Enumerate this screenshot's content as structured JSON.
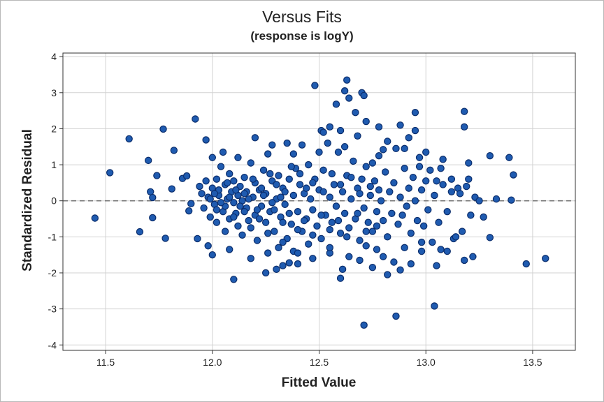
{
  "chart_data": {
    "type": "scatter",
    "title": "Versus Fits",
    "subtitle": "(response is logY)",
    "xlabel": "Fitted Value",
    "ylabel": "Standardized Residual",
    "xlim": [
      11.3,
      13.7
    ],
    "ylim": [
      -4.15,
      4.1
    ],
    "xticks": [
      11.5,
      12.0,
      12.5,
      13.0,
      13.5
    ],
    "xtick_labels": [
      "11.5",
      "12.0",
      "12.5",
      "13.0",
      "13.5"
    ],
    "yticks": [
      -4,
      -3,
      -2,
      -1,
      0,
      1,
      2,
      3,
      4
    ],
    "ytick_labels": [
      "-4",
      "-3",
      "-2",
      "-1",
      "0",
      "1",
      "2",
      "3",
      "4"
    ],
    "grid": true,
    "reference_line": {
      "y": 0,
      "style": "dashed"
    },
    "marker_color": "#1f5bb0",
    "marker_edge_color": "#0b2d6b",
    "points": [
      [
        11.45,
        -0.48
      ],
      [
        11.52,
        0.78
      ],
      [
        11.61,
        1.72
      ],
      [
        11.66,
        -0.86
      ],
      [
        11.7,
        1.12
      ],
      [
        11.71,
        0.25
      ],
      [
        11.72,
        0.09
      ],
      [
        11.72,
        -0.47
      ],
      [
        11.74,
        0.7
      ],
      [
        11.77,
        1.99
      ],
      [
        11.78,
        -1.04
      ],
      [
        11.81,
        0.33
      ],
      [
        11.82,
        1.4
      ],
      [
        11.86,
        0.62
      ],
      [
        11.88,
        0.69
      ],
      [
        11.89,
        -0.28
      ],
      [
        11.9,
        -0.08
      ],
      [
        11.92,
        2.27
      ],
      [
        11.93,
        -1.05
      ],
      [
        11.97,
        1.69
      ],
      [
        11.98,
        -1.25
      ],
      [
        12.1,
        -2.18
      ],
      [
        12.25,
        -2.0
      ],
      [
        12.3,
        -1.9
      ],
      [
        12.33,
        -1.8
      ],
      [
        12.36,
        -1.72
      ],
      [
        12.4,
        -1.75
      ],
      [
        12.48,
        3.2
      ],
      [
        12.51,
        1.95
      ],
      [
        12.55,
        -1.45
      ],
      [
        12.58,
        2.68
      ],
      [
        12.6,
        -2.15
      ],
      [
        12.61,
        -1.9
      ],
      [
        12.63,
        3.35
      ],
      [
        12.62,
        3.05
      ],
      [
        12.64,
        2.85
      ],
      [
        12.67,
        2.45
      ],
      [
        12.69,
        -1.65
      ],
      [
        12.7,
        3.0
      ],
      [
        12.71,
        2.92
      ],
      [
        12.71,
        -3.45
      ],
      [
        12.72,
        2.2
      ],
      [
        12.75,
        -1.85
      ],
      [
        12.77,
        -1.35
      ],
      [
        12.78,
        2.05
      ],
      [
        12.8,
        1.42
      ],
      [
        12.82,
        -2.05
      ],
      [
        12.86,
        -3.2
      ],
      [
        12.88,
        2.1
      ],
      [
        12.88,
        -1.92
      ],
      [
        12.95,
        2.45
      ],
      [
        12.95,
        1.95
      ],
      [
        12.98,
        -1.4
      ],
      [
        13.04,
        -2.92
      ],
      [
        13.08,
        1.15
      ],
      [
        13.15,
        0.35
      ],
      [
        13.18,
        2.48
      ],
      [
        13.18,
        2.05
      ],
      [
        13.2,
        1.05
      ],
      [
        13.22,
        -1.55
      ],
      [
        13.3,
        1.25
      ],
      [
        13.3,
        -1.02
      ],
      [
        13.39,
        1.2
      ],
      [
        13.4,
        0.02
      ],
      [
        13.41,
        0.72
      ],
      [
        13.47,
        -1.75
      ],
      [
        13.56,
        -1.6
      ],
      [
        11.94,
        0.4
      ],
      [
        11.95,
        0.2
      ],
      [
        11.96,
        -0.2
      ],
      [
        11.97,
        0.55
      ],
      [
        11.98,
        0.1
      ],
      [
        11.99,
        -0.45
      ],
      [
        12.0,
        0.35
      ],
      [
        12.01,
        -0.1
      ],
      [
        12.02,
        0.6
      ],
      [
        12.02,
        -0.6
      ],
      [
        12.03,
        0.15
      ],
      [
        12.04,
        0.95
      ],
      [
        12.05,
        -0.3
      ],
      [
        12.06,
        0.45
      ],
      [
        12.06,
        -0.85
      ],
      [
        12.07,
        0.05
      ],
      [
        12.08,
        0.75
      ],
      [
        12.08,
        -0.5
      ],
      [
        12.09,
        0.25
      ],
      [
        12.1,
        -0.05
      ],
      [
        12.1,
        0.55
      ],
      [
        12.11,
        -0.35
      ],
      [
        12.12,
        0.15
      ],
      [
        12.12,
        -0.7
      ],
      [
        12.13,
        0.4
      ],
      [
        12.14,
        0.0
      ],
      [
        12.14,
        -0.95
      ],
      [
        12.15,
        0.65
      ],
      [
        12.16,
        -0.2
      ],
      [
        12.16,
        0.25
      ],
      [
        12.17,
        -0.55
      ],
      [
        12.18,
        1.05
      ],
      [
        12.19,
        0.1
      ],
      [
        12.2,
        -0.4
      ],
      [
        12.2,
        0.5
      ],
      [
        12.21,
        -1.1
      ],
      [
        12.22,
        0.3
      ],
      [
        12.23,
        -0.15
      ],
      [
        12.24,
        0.85
      ],
      [
        12.25,
        -0.6
      ],
      [
        12.25,
        0.2
      ],
      [
        12.26,
        1.3
      ],
      [
        12.27,
        -0.3
      ],
      [
        12.28,
        0.55
      ],
      [
        12.29,
        -0.85
      ],
      [
        12.3,
        0.05
      ],
      [
        12.31,
        -1.3
      ],
      [
        12.31,
        0.7
      ],
      [
        12.32,
        -0.45
      ],
      [
        12.33,
        0.35
      ],
      [
        12.34,
        -0.1
      ],
      [
        12.35,
        -1.05
      ],
      [
        12.36,
        0.6
      ],
      [
        12.37,
        -0.65
      ],
      [
        12.38,
        0.15
      ],
      [
        12.38,
        -1.4
      ],
      [
        12.39,
        0.9
      ],
      [
        12.4,
        -0.3
      ],
      [
        12.41,
        0.45
      ],
      [
        12.42,
        -0.85
      ],
      [
        12.43,
        0.2
      ],
      [
        12.44,
        -0.5
      ],
      [
        12.45,
        1.0
      ],
      [
        12.45,
        -1.2
      ],
      [
        12.46,
        0.05
      ],
      [
        12.47,
        -0.25
      ],
      [
        12.48,
        0.6
      ],
      [
        12.49,
        -0.7
      ],
      [
        12.5,
        0.3
      ],
      [
        12.51,
        -1.05
      ],
      [
        12.52,
        0.85
      ],
      [
        12.53,
        -0.4
      ],
      [
        12.54,
        1.6
      ],
      [
        12.55,
        0.1
      ],
      [
        12.56,
        -0.6
      ],
      [
        12.57,
        0.45
      ],
      [
        12.58,
        -0.15
      ],
      [
        12.59,
        1.35
      ],
      [
        12.6,
        -0.9
      ],
      [
        12.61,
        0.25
      ],
      [
        12.62,
        -0.35
      ],
      [
        12.63,
        0.7
      ],
      [
        12.64,
        -0.75
      ],
      [
        12.65,
        0.05
      ],
      [
        12.66,
        1.1
      ],
      [
        12.67,
        -0.5
      ],
      [
        12.68,
        0.35
      ],
      [
        12.69,
        -1.1
      ],
      [
        12.7,
        0.6
      ],
      [
        12.71,
        -0.2
      ],
      [
        12.72,
        0.95
      ],
      [
        12.73,
        -0.6
      ],
      [
        12.74,
        0.15
      ],
      [
        12.75,
        -0.85
      ],
      [
        12.76,
        0.55
      ],
      [
        12.77,
        -0.3
      ],
      [
        12.78,
        1.25
      ],
      [
        12.79,
        0.0
      ],
      [
        12.8,
        -0.55
      ],
      [
        12.81,
        0.8
      ],
      [
        12.82,
        -1.0
      ],
      [
        12.83,
        0.25
      ],
      [
        12.84,
        -0.35
      ],
      [
        12.85,
        0.5
      ],
      [
        12.86,
        1.45
      ],
      [
        12.87,
        -0.65
      ],
      [
        12.88,
        0.1
      ],
      [
        12.89,
        -0.4
      ],
      [
        12.9,
        0.9
      ],
      [
        12.91,
        -0.15
      ],
      [
        12.92,
        0.35
      ],
      [
        12.93,
        -0.9
      ],
      [
        12.94,
        0.65
      ],
      [
        12.95,
        0.0
      ],
      [
        12.96,
        -0.55
      ],
      [
        12.97,
        1.2
      ],
      [
        12.98,
        0.3
      ],
      [
        12.99,
        -0.7
      ],
      [
        13.0,
        0.55
      ],
      [
        13.01,
        -0.25
      ],
      [
        13.02,
        0.85
      ],
      [
        13.03,
        -1.15
      ],
      [
        13.04,
        0.15
      ],
      [
        13.05,
        0.55
      ],
      [
        13.06,
        -0.6
      ],
      [
        13.08,
        0.45
      ],
      [
        13.1,
        -0.3
      ],
      [
        13.12,
        0.6
      ],
      [
        13.13,
        -1.05
      ],
      [
        13.16,
        0.2
      ],
      [
        13.17,
        -0.85
      ],
      [
        13.19,
        0.4
      ],
      [
        13.21,
        -0.4
      ],
      [
        13.23,
        0.1
      ],
      [
        13.25,
        0.0
      ],
      [
        12.0,
        1.2
      ],
      [
        12.05,
        1.35
      ],
      [
        12.12,
        1.2
      ],
      [
        12.2,
        1.75
      ],
      [
        12.28,
        1.55
      ],
      [
        12.35,
        1.6
      ],
      [
        12.42,
        1.55
      ],
      [
        12.5,
        1.35
      ],
      [
        12.55,
        2.05
      ],
      [
        12.62,
        1.5
      ],
      [
        12.68,
        1.8
      ],
      [
        12.75,
        1.05
      ],
      [
        12.82,
        1.65
      ],
      [
        12.9,
        1.45
      ],
      [
        12.97,
        0.95
      ],
      [
        12.0,
        -1.5
      ],
      [
        12.08,
        -1.35
      ],
      [
        12.18,
        -1.6
      ],
      [
        12.26,
        -1.45
      ],
      [
        12.33,
        -1.15
      ],
      [
        12.4,
        -1.45
      ],
      [
        12.47,
        -1.6
      ],
      [
        12.55,
        -1.3
      ],
      [
        12.64,
        -1.55
      ],
      [
        12.72,
        -1.25
      ],
      [
        12.8,
        -1.55
      ],
      [
        12.9,
        -1.3
      ],
      [
        12.98,
        -1.15
      ],
      [
        13.07,
        -1.35
      ],
      [
        13.14,
        -1.0
      ],
      [
        12.03,
        0.3
      ],
      [
        12.07,
        0.5
      ],
      [
        12.11,
        0.3
      ],
      [
        12.15,
        0.2
      ],
      [
        12.19,
        0.6
      ],
      [
        12.23,
        0.35
      ],
      [
        12.27,
        0.75
      ],
      [
        12.3,
        0.45
      ],
      [
        12.34,
        0.25
      ],
      [
        12.37,
        0.95
      ],
      [
        12.41,
        0.75
      ],
      [
        12.44,
        0.35
      ],
      [
        12.47,
        0.5
      ],
      [
        12.52,
        0.25
      ],
      [
        12.56,
        0.75
      ],
      [
        12.6,
        0.45
      ],
      [
        12.65,
        0.65
      ],
      [
        12.69,
        0.2
      ],
      [
        12.74,
        0.4
      ],
      [
        12.78,
        0.3
      ],
      [
        12.02,
        -0.25
      ],
      [
        12.06,
        -0.15
      ],
      [
        12.1,
        -0.45
      ],
      [
        12.15,
        -0.3
      ],
      [
        12.18,
        -0.75
      ],
      [
        12.22,
        -0.5
      ],
      [
        12.26,
        -0.9
      ],
      [
        12.29,
        -0.25
      ],
      [
        12.33,
        -0.6
      ],
      [
        12.36,
        -0.35
      ],
      [
        12.4,
        -0.8
      ],
      [
        12.43,
        -0.55
      ],
      [
        12.47,
        -0.95
      ],
      [
        12.51,
        -0.4
      ],
      [
        12.55,
        -0.8
      ],
      [
        12.59,
        -0.55
      ],
      [
        12.63,
        -1.0
      ],
      [
        12.68,
        -0.35
      ],
      [
        12.72,
        -0.85
      ],
      [
        12.77,
        -0.7
      ],
      [
        11.99,
        0.05
      ],
      [
        12.01,
        0.2
      ],
      [
        12.04,
        -0.05
      ],
      [
        12.08,
        0.1
      ],
      [
        12.13,
        -0.15
      ],
      [
        12.17,
        0.05
      ],
      [
        12.21,
        -0.25
      ],
      [
        12.24,
        0.15
      ],
      [
        12.28,
        -0.05
      ],
      [
        12.32,
        0.1
      ],
      [
        12.85,
        -1.7
      ],
      [
        12.93,
        -1.75
      ],
      [
        12.6,
        1.95
      ],
      [
        12.52,
        1.9
      ],
      [
        12.38,
        1.3
      ],
      [
        12.92,
        1.75
      ],
      [
        13.0,
        1.35
      ],
      [
        13.07,
        0.9
      ],
      [
        13.12,
        0.25
      ],
      [
        13.2,
        0.6
      ],
      [
        13.27,
        -0.45
      ],
      [
        13.33,
        0.05
      ],
      [
        13.1,
        -1.4
      ],
      [
        13.05,
        -1.8
      ],
      [
        13.18,
        -1.65
      ]
    ]
  }
}
